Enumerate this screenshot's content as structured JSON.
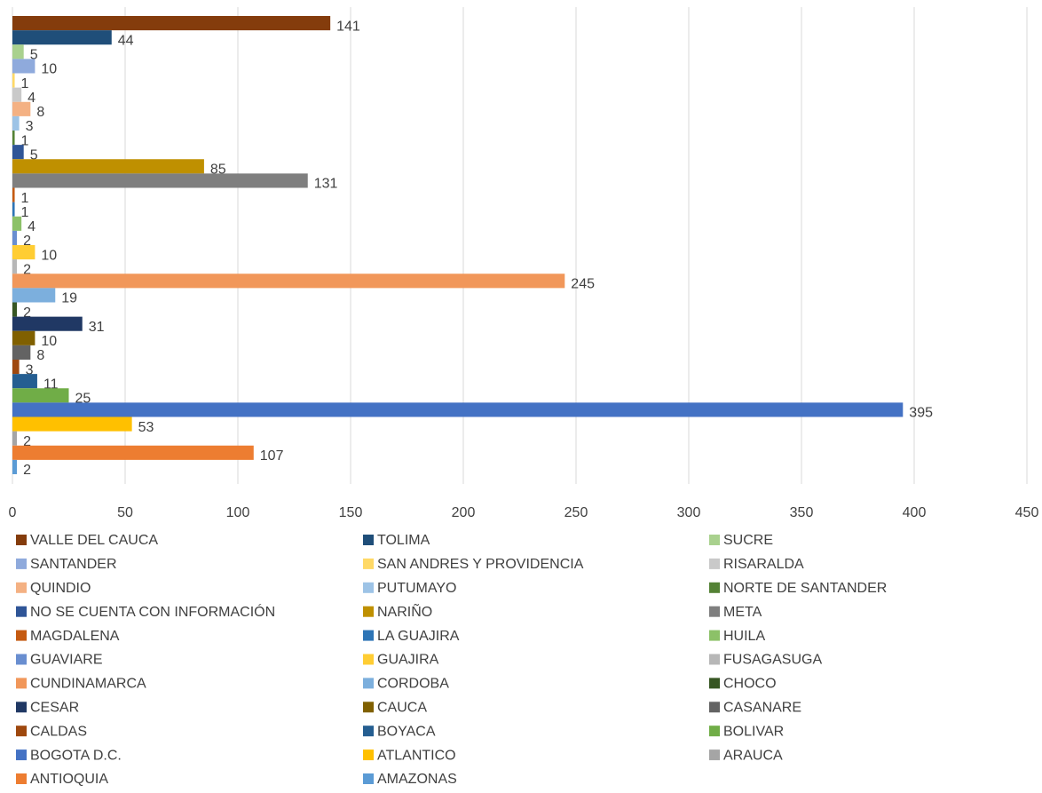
{
  "chart_data": {
    "type": "bar",
    "orientation": "horizontal",
    "categories": [
      null
    ],
    "xlim": [
      0,
      450
    ],
    "xticks": [
      0,
      50,
      100,
      150,
      200,
      250,
      300,
      350,
      400,
      450
    ],
    "grid": true,
    "legend": "bottom",
    "series": [
      {
        "name": "VALLE DEL CAUCA",
        "color": "#843c0c",
        "values": [
          141
        ]
      },
      {
        "name": "TOLIMA",
        "color": "#1f4e79",
        "values": [
          44
        ]
      },
      {
        "name": "SUCRE",
        "color": "#a9d18e",
        "values": [
          5
        ]
      },
      {
        "name": "SANTANDER",
        "color": "#8faadc",
        "values": [
          10
        ]
      },
      {
        "name": "SAN ANDRES Y PROVIDENCIA",
        "color": "#ffd966",
        "values": [
          1
        ]
      },
      {
        "name": "RISARALDA",
        "color": "#c9c9c9",
        "values": [
          4
        ]
      },
      {
        "name": "QUINDIO",
        "color": "#f4b183",
        "values": [
          8
        ]
      },
      {
        "name": "PUTUMAYO",
        "color": "#9dc3e6",
        "values": [
          3
        ]
      },
      {
        "name": "NORTE DE SANTANDER",
        "color": "#548235",
        "values": [
          1
        ]
      },
      {
        "name": "NO SE CUENTA CON INFORMACIÓN",
        "color": "#2f5597",
        "values": [
          5
        ]
      },
      {
        "name": "NARIÑO",
        "color": "#bf9000",
        "values": [
          85
        ]
      },
      {
        "name": "META",
        "color": "#7f7f7f",
        "values": [
          131
        ]
      },
      {
        "name": "MAGDALENA",
        "color": "#c55a11",
        "values": [
          1
        ]
      },
      {
        "name": "LA GUAJIRA",
        "color": "#2e75b6",
        "values": [
          1
        ]
      },
      {
        "name": "HUILA",
        "color": "#8cc168",
        "values": [
          4
        ]
      },
      {
        "name": "GUAVIARE",
        "color": "#698ed0",
        "values": [
          2
        ]
      },
      {
        "name": "GUAJIRA",
        "color": "#ffcd33",
        "values": [
          10
        ]
      },
      {
        "name": "FUSAGASUGA",
        "color": "#b7b7b7",
        "values": [
          2
        ]
      },
      {
        "name": "CUNDINAMARCA",
        "color": "#f1975a",
        "values": [
          245
        ]
      },
      {
        "name": "CORDOBA",
        "color": "#7cafdd",
        "values": [
          19
        ]
      },
      {
        "name": "CHOCO",
        "color": "#375623",
        "values": [
          2
        ]
      },
      {
        "name": "CESAR",
        "color": "#203864",
        "values": [
          31
        ]
      },
      {
        "name": "CAUCA",
        "color": "#806000",
        "values": [
          10
        ]
      },
      {
        "name": "CASANARE",
        "color": "#636363",
        "values": [
          8
        ]
      },
      {
        "name": "CALDAS",
        "color": "#9e480e",
        "values": [
          3
        ]
      },
      {
        "name": "BOYACA",
        "color": "#255e91",
        "values": [
          11
        ]
      },
      {
        "name": "BOLIVAR",
        "color": "#70ad47",
        "values": [
          25
        ]
      },
      {
        "name": "BOGOTA D.C.",
        "color": "#4472c4",
        "values": [
          395
        ]
      },
      {
        "name": "ATLANTICO",
        "color": "#ffc000",
        "values": [
          53
        ]
      },
      {
        "name": "ARAUCA",
        "color": "#a5a5a5",
        "values": [
          2
        ]
      },
      {
        "name": "ANTIOQUIA",
        "color": "#ed7d31",
        "values": [
          107
        ]
      },
      {
        "name": "AMAZONAS",
        "color": "#5b9bd5",
        "values": [
          2
        ]
      }
    ]
  }
}
